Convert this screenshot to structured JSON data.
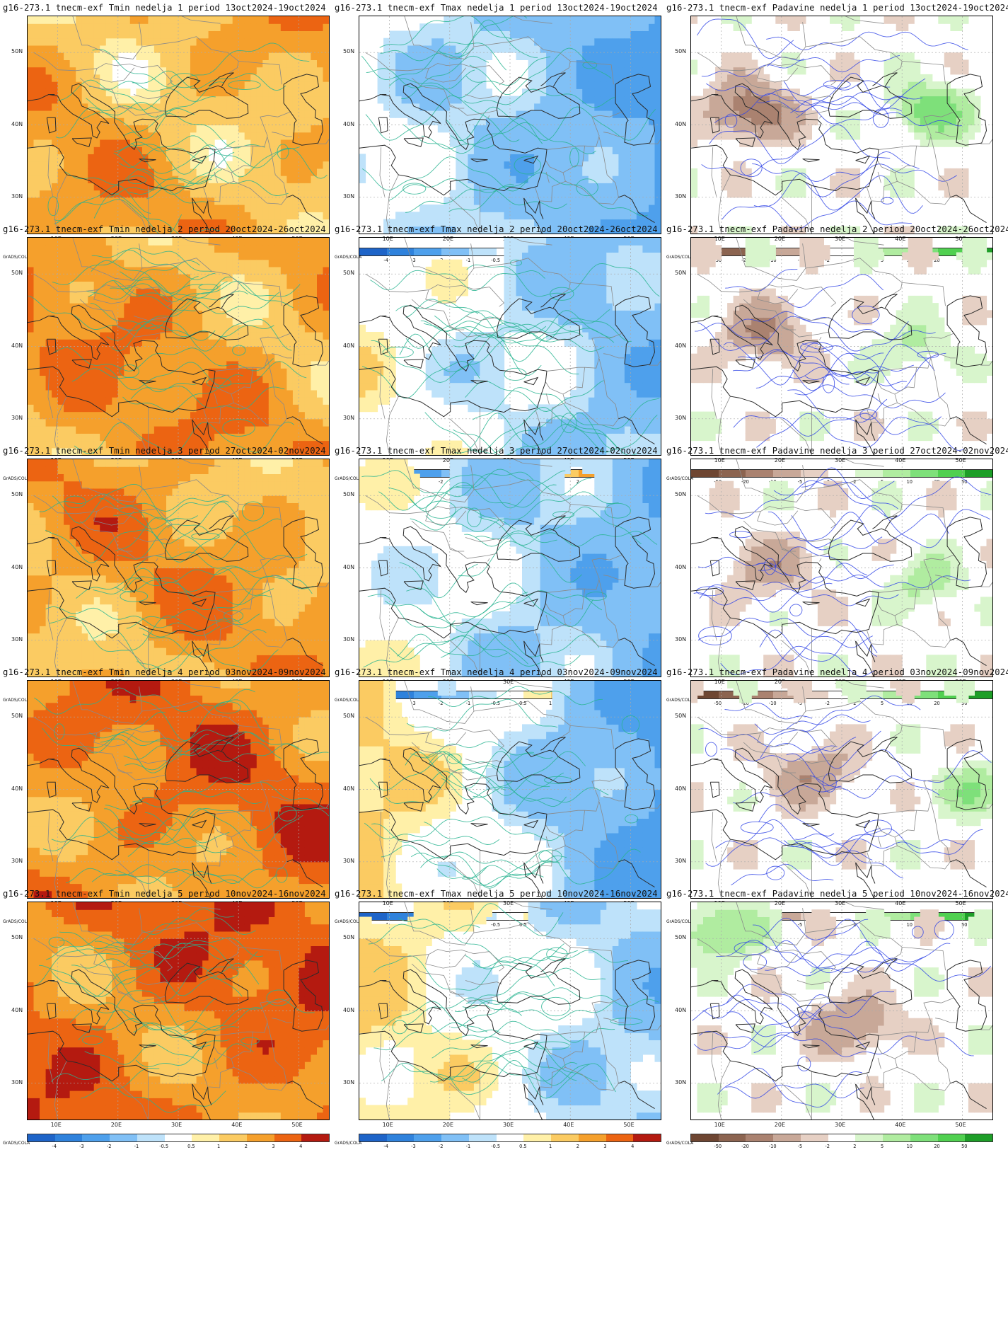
{
  "panels": [
    {
      "title": "g16-273.1 tnecm-exf Tmin nedelja 1 period 13oct2024-19oct2024",
      "variable": "tmin",
      "row": 0,
      "col": 0
    },
    {
      "title": "g16-273.1 tnecm-exf Tmax nedelja 1 period 13oct2024-19oct2024",
      "variable": "tmax",
      "row": 0,
      "col": 1
    },
    {
      "title": "g16-273.1 tnecm-exf Padavine nedelja 1 period 13oct2024-19oct2024",
      "variable": "prec",
      "row": 0,
      "col": 2
    },
    {
      "title": "g16-273.1 tnecm-exf Tmin nedelja 2 period 20oct2024-26oct2024",
      "variable": "tmin",
      "row": 1,
      "col": 0
    },
    {
      "title": "g16-273.1 tnecm-exf Tmax nedelja 2 period 20oct2024-26oct2024",
      "variable": "tmax",
      "row": 1,
      "col": 1
    },
    {
      "title": "g16-273.1 tnecm-exf Padavine nedelja 2 period 20oct2024-26oct2024",
      "variable": "prec",
      "row": 1,
      "col": 2
    },
    {
      "title": "g16-273.1 tnecm-exf Tmin nedelja 3 period 27oct2024-02nov2024",
      "variable": "tmin",
      "row": 2,
      "col": 0
    },
    {
      "title": "g16-273.1 tnecm-exf Tmax nedelja 3 period 27oct2024-02nov2024",
      "variable": "tmax",
      "row": 2,
      "col": 1
    },
    {
      "title": "g16-273.1 tnecm-exf Padavine nedelja 3 period 27oct2024-02nov2024",
      "variable": "prec",
      "row": 2,
      "col": 2
    },
    {
      "title": "g16-273.1 tnecm-exf Tmin nedelja 4 period 03nov2024-09nov2024",
      "variable": "tmin",
      "row": 3,
      "col": 0
    },
    {
      "title": "g16-273.1 tnecm-exf Tmax nedelja 4 period 03nov2024-09nov2024",
      "variable": "tmax",
      "row": 3,
      "col": 1
    },
    {
      "title": "g16-273.1 tnecm-exf Padavine nedelja 4 period 03nov2024-09nov2024",
      "variable": "prec",
      "row": 3,
      "col": 2
    },
    {
      "title": "g16-273.1 tnecm-exf Tmin nedelja 5 period 10nov2024-16nov2024",
      "variable": "tmin",
      "row": 4,
      "col": 0
    },
    {
      "title": "g16-273.1 tnecm-exf Tmax nedelja 5 period 10nov2024-16nov2024",
      "variable": "tmax",
      "row": 4,
      "col": 1
    },
    {
      "title": "g16-273.1 tnecm-exf Padavine nedelja 5 period 10nov2024-16nov2024",
      "variable": "prec",
      "row": 4,
      "col": 2
    }
  ],
  "axes": {
    "lon_ticks": [
      "10E",
      "20E",
      "30E",
      "40E",
      "50E"
    ],
    "lat_ticks": [
      "50N",
      "40N",
      "30N"
    ],
    "lon_range": [
      5,
      55
    ],
    "lat_range": [
      25,
      55
    ]
  },
  "colorbars": {
    "source_label": "GrADS/COLA",
    "temperature": {
      "ticks": [
        "-4",
        "-3",
        "-2",
        "-1",
        "-0.5",
        "0.5",
        "1",
        "2",
        "3",
        "4"
      ],
      "colors": [
        "#1e64c8",
        "#2f82dc",
        "#4ea0ec",
        "#80c0f6",
        "#bee2fa",
        "#ffffff",
        "#fff0a8",
        "#fbcb62",
        "#f5a02c",
        "#ec6412",
        "#b41a10"
      ]
    },
    "precipitation": {
      "ticks": [
        "-50",
        "-20",
        "-10",
        "-5",
        "-2",
        "2",
        "5",
        "10",
        "20",
        "50"
      ],
      "colors": [
        "#6e4632",
        "#8c6450",
        "#aa8270",
        "#c8a898",
        "#e6d0c4",
        "#ffffff",
        "#d8f5cc",
        "#b0eca0",
        "#7ee07a",
        "#50d050",
        "#1e9e28"
      ]
    },
    "contour_colors": {
      "temperature": "#28b490",
      "precipitation": "#3246e6"
    },
    "map_line_colors": {
      "coast": "#2b2b2b",
      "border": "#8a8a8a",
      "grid": "#aaaaaa"
    }
  }
}
